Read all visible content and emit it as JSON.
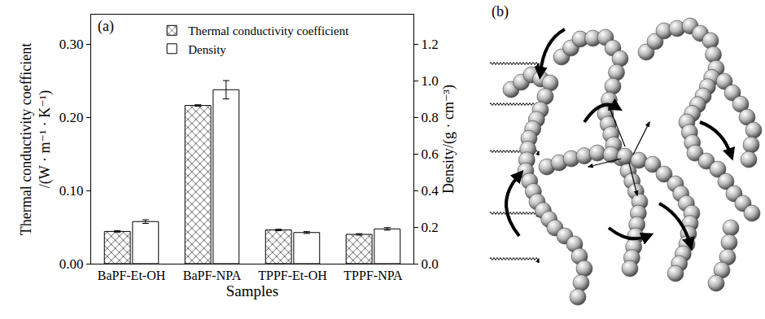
{
  "chart_data": {
    "type": "bar",
    "panel_label": "(a)",
    "x_label": "Samples",
    "y_label": "Thermal conductivity coefficient\n/(W · m⁻¹ · K⁻¹)",
    "y2_label": "Density/(g · cm⁻³)",
    "categories": [
      "BaPF-Et-OH",
      "BaPF-NPA",
      "TPPF-Et-OH",
      "TPPF-NPA"
    ],
    "series": [
      {
        "name": "Thermal conductivity coefficient",
        "color": "#333333",
        "marker": "crosshatch",
        "values": [
          0.044,
          0.216,
          0.046,
          0.04
        ],
        "errors": [
          0.001,
          0.001,
          0.001,
          0.001
        ]
      },
      {
        "name": "Density",
        "color": "#ffffff",
        "axis": "y2",
        "values": [
          0.23,
          0.95,
          0.17,
          0.19
        ],
        "errors": [
          0.01,
          0.05,
          0.005,
          0.007
        ]
      }
    ],
    "ylim": [
      0,
      0.34
    ],
    "yticks": [
      {
        "value": 0,
        "label": "0.00"
      },
      {
        "value": 0.1,
        "label": "0.10"
      },
      {
        "value": 0.2,
        "label": "0.20"
      },
      {
        "value": 0.3,
        "label": "0.30"
      }
    ],
    "y2lim": [
      0,
      1.36
    ],
    "y2ticks": [
      {
        "value": 0,
        "label": "0.0"
      },
      0.2,
      0.4,
      0.6,
      0.8,
      {
        "value": 1,
        "label": "1.0"
      },
      1.2
    ],
    "legend": "top",
    "grid": false
  },
  "diagram": {
    "label": "(b)"
  }
}
